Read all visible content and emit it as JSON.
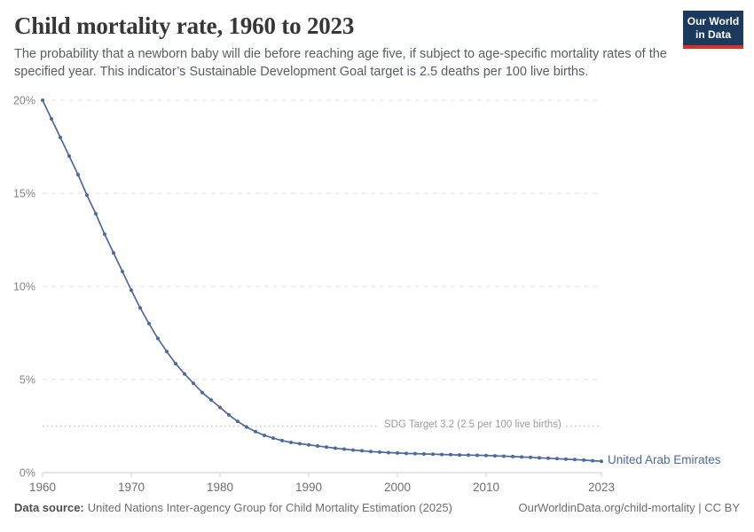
{
  "header": {
    "title": "Child mortality rate, 1960 to 2023",
    "subtitle": "The probability that a newborn baby will die before reaching age five, if subject to age-specific mortality rates of the specified year. This indicator’s Sustainable Development Goal target is 2.5 deaths per 100 live births."
  },
  "logo": {
    "line1": "Our World",
    "line2": "in Data",
    "bg_color": "#1b3a5e",
    "bar_color": "#d93025"
  },
  "footer": {
    "source_label": "Data source:",
    "source_text": "United Nations Inter-agency Group for Child Mortality Estimation (2025)",
    "link_text": "OurWorldinData.org/child-mortality | CC BY"
  },
  "chart_data": {
    "type": "line",
    "title": "Child mortality rate, 1960 to 2023",
    "xlabel": "",
    "ylabel": "",
    "xlim": [
      1960,
      2023
    ],
    "ylim": [
      0,
      20
    ],
    "grid": "horizontal-dashed",
    "legend_position": "end-of-line",
    "x": [
      1960,
      1961,
      1962,
      1963,
      1964,
      1965,
      1966,
      1967,
      1968,
      1969,
      1970,
      1971,
      1972,
      1973,
      1974,
      1975,
      1976,
      1977,
      1978,
      1979,
      1980,
      1981,
      1982,
      1983,
      1984,
      1985,
      1986,
      1987,
      1988,
      1989,
      1990,
      1991,
      1992,
      1993,
      1994,
      1995,
      1996,
      1997,
      1998,
      1999,
      2000,
      2001,
      2002,
      2003,
      2004,
      2005,
      2006,
      2007,
      2008,
      2009,
      2010,
      2011,
      2012,
      2013,
      2014,
      2015,
      2016,
      2017,
      2018,
      2019,
      2020,
      2021,
      2022,
      2023
    ],
    "series": [
      {
        "name": "United Arab Emirates",
        "color": "#4c6a9c",
        "unit": "% of newborns dying before age five",
        "values": [
          20.0,
          19.0,
          18.0,
          17.0,
          16.0,
          14.9,
          13.9,
          12.8,
          11.8,
          10.8,
          9.8,
          8.85,
          8.0,
          7.2,
          6.5,
          5.85,
          5.3,
          4.8,
          4.3,
          3.9,
          3.5,
          3.1,
          2.75,
          2.45,
          2.2,
          2.0,
          1.85,
          1.72,
          1.62,
          1.55,
          1.49,
          1.43,
          1.37,
          1.31,
          1.26,
          1.21,
          1.17,
          1.13,
          1.1,
          1.07,
          1.05,
          1.03,
          1.02,
          1.0,
          0.99,
          0.97,
          0.96,
          0.95,
          0.94,
          0.93,
          0.92,
          0.9,
          0.88,
          0.86,
          0.84,
          0.82,
          0.79,
          0.77,
          0.75,
          0.72,
          0.7,
          0.67,
          0.64,
          0.61
        ]
      }
    ],
    "y_ticks": [
      {
        "value": 0,
        "label": "0%"
      },
      {
        "value": 5,
        "label": "5%"
      },
      {
        "value": 10,
        "label": "10%"
      },
      {
        "value": 15,
        "label": "15%"
      },
      {
        "value": 20,
        "label": "20%"
      }
    ],
    "x_ticks": [
      {
        "value": 1960,
        "label": "1960"
      },
      {
        "value": 1970,
        "label": "1970"
      },
      {
        "value": 1980,
        "label": "1980"
      },
      {
        "value": 1990,
        "label": "1990"
      },
      {
        "value": 2000,
        "label": "2000"
      },
      {
        "value": 2010,
        "label": "2010"
      },
      {
        "value": 2023,
        "label": "2023"
      }
    ],
    "sdg_line": {
      "value": 2.5,
      "label": "SDG Target 3.2 (2.5 per 100 live births)"
    },
    "colors": {
      "series": "#4c6a9c",
      "gridline": "#e0e0e0",
      "axis": "#cdcdcd",
      "sdg_line": "#c4c4c4"
    }
  }
}
